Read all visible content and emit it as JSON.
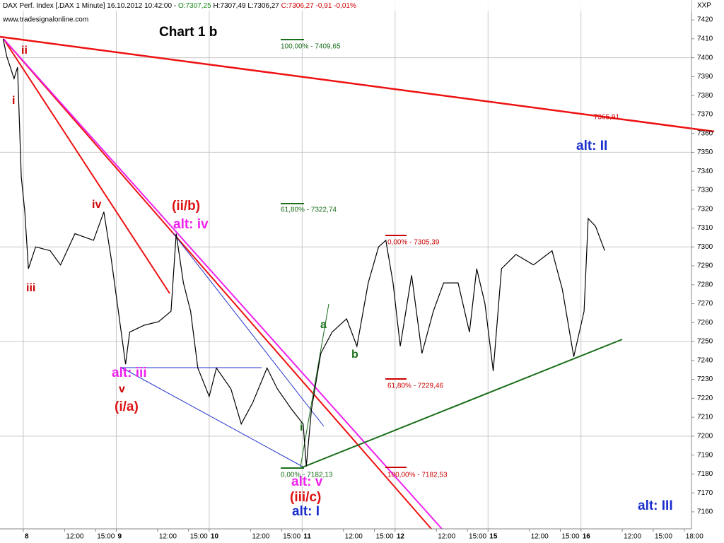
{
  "chart_data": {
    "type": "line",
    "header": {
      "title": "DAX Perf. Index [.DAX 1 Minute] 16.10.2012 10:42:00 -",
      "open": "O:7307,25",
      "high": "H:7307,49",
      "low": "L:7306,27",
      "close": "C:7306,27 -0,91 -0,01%"
    },
    "watermark": "www.tradesignalonline.com",
    "chart_label": "Chart 1 b",
    "axis_code": "XXP",
    "x": [
      -1.96,
      -1.6,
      -0.9,
      -0.56,
      -0.2,
      0.14,
      0.49,
      1.19,
      2.6,
      3.6,
      5.0,
      6.8,
      7.8,
      8.5,
      9.2,
      9.9,
      10.3,
      11.7,
      13.1,
      14.3,
      14.8,
      15.5,
      16.2,
      16.9,
      18.0,
      18.7,
      20.1,
      21.1,
      22.2,
      23.6,
      24.6,
      26.0,
      27.1,
      27.4,
      27.9,
      28.8,
      29.9,
      31.3,
      32.3,
      33.4,
      34.4,
      35.1,
      35.8,
      36.5,
      37.6,
      38.6,
      39.7,
      40.7,
      42.1,
      43.2,
      43.9,
      44.7,
      45.5,
      46.3,
      47.7,
      49.4,
      51.2,
      52.2,
      53.3,
      54.3,
      54.7,
      55.4,
      56.3
    ],
    "series": [
      {
        "name": "DAX Perf. Index",
        "color": "#000000",
        "values": [
          7410,
          7400.6,
          7389,
          7395,
          7337,
          7318.5,
          7288.5,
          7300,
          7298,
          7290.5,
          7307,
          7303.5,
          7318.5,
          7294,
          7266,
          7238,
          7255,
          7258.6,
          7260.5,
          7266,
          7307,
          7281,
          7266,
          7236,
          7221,
          7236,
          7225,
          7206.4,
          7217.6,
          7236,
          7225,
          7214,
          7206.4,
          7184,
          7214,
          7243.7,
          7255,
          7262,
          7247.5,
          7281,
          7300,
          7303.5,
          7281,
          7247.5,
          7285,
          7243.7,
          7266,
          7281,
          7281,
          7255,
          7288.5,
          7270,
          7234.4,
          7288.5,
          7296,
          7290.5,
          7298,
          7277.5,
          7242,
          7266,
          7315,
          7311,
          7298
        ]
      }
    ],
    "xlim": [
      -2.26,
      64.7
    ],
    "ylim": [
      7151,
      7430.5
    ],
    "yticks": [
      7160,
      7170,
      7180,
      7190,
      7200,
      7210,
      7220,
      7230,
      7240,
      7250,
      7260,
      7270,
      7280,
      7290,
      7300,
      7310,
      7320,
      7330,
      7340,
      7350,
      7360,
      7370,
      7380,
      7390,
      7400,
      7410,
      7420
    ],
    "xticks": [
      {
        "value": 0,
        "label": "8"
      },
      {
        "value": 4,
        "label": "12:00"
      },
      {
        "value": 7,
        "label": "15:00"
      },
      {
        "value": 9,
        "label": "9"
      },
      {
        "value": 13,
        "label": "12:00"
      },
      {
        "value": 16,
        "label": "15:00"
      },
      {
        "value": 18,
        "label": "10"
      },
      {
        "value": 22,
        "label": "12:00"
      },
      {
        "value": 25,
        "label": "15:00"
      },
      {
        "value": 27,
        "label": "11"
      },
      {
        "value": 31,
        "label": "12:00"
      },
      {
        "value": 34,
        "label": "15:00"
      },
      {
        "value": 36,
        "label": "12"
      },
      {
        "value": 40,
        "label": "12:00"
      },
      {
        "value": 43,
        "label": "15:00"
      },
      {
        "value": 45,
        "label": "15"
      },
      {
        "value": 49,
        "label": "12:00"
      },
      {
        "value": 52,
        "label": "15:00"
      },
      {
        "value": 54,
        "label": "16"
      },
      {
        "value": 58,
        "label": "12:00"
      },
      {
        "value": 61,
        "label": "15:00"
      },
      {
        "value": 64,
        "label": "18:00"
      }
    ],
    "grid": true,
    "annotations": [
      {
        "text": "ii",
        "color": "#cc0000"
      },
      {
        "text": "i",
        "color": "#cc0000"
      },
      {
        "text": "iv",
        "color": "#cc0000"
      },
      {
        "text": "iii",
        "color": "#cc0000"
      },
      {
        "text": "(ii/b)",
        "color": "#dd1111"
      },
      {
        "text": "alt: iv",
        "color": "#ee22ee"
      },
      {
        "text": "alt: iii",
        "color": "#ee22ee"
      },
      {
        "text": "v",
        "color": "#cc0000"
      },
      {
        "text": "(i/a)",
        "color": "#dd1111"
      },
      {
        "text": "a",
        "color": "#1a6e1a"
      },
      {
        "text": "b",
        "color": "#1a6e1a"
      },
      {
        "text": "i",
        "color": "#1a6e1a"
      },
      {
        "text": "alt: v",
        "color": "#ee22ee"
      },
      {
        "text": "(iii/c)",
        "color": "#dd1111"
      },
      {
        "text": "alt: I",
        "color": "#1a2fcc"
      },
      {
        "text": "alt: II",
        "color": "#1a2fcc"
      },
      {
        "text": "alt: III",
        "color": "#1a2fcc"
      }
    ],
    "fib_labels": [
      {
        "text": "100,00% - 7409,65",
        "color": "#1a6e1a"
      },
      {
        "text": "61,80% - 7322,74",
        "color": "#1a6e1a"
      },
      {
        "text": "0,00% - 7182,13",
        "color": "#1a6e1a"
      },
      {
        "text": "0,00% - 7305,39",
        "color": "#cc0000"
      },
      {
        "text": "61,80% - 7229,46",
        "color": "#cc0000"
      },
      {
        "text": "100,00% - 7182,53",
        "color": "#cc0000"
      },
      {
        "text": "7365,91",
        "color": "#cc0000"
      }
    ]
  }
}
